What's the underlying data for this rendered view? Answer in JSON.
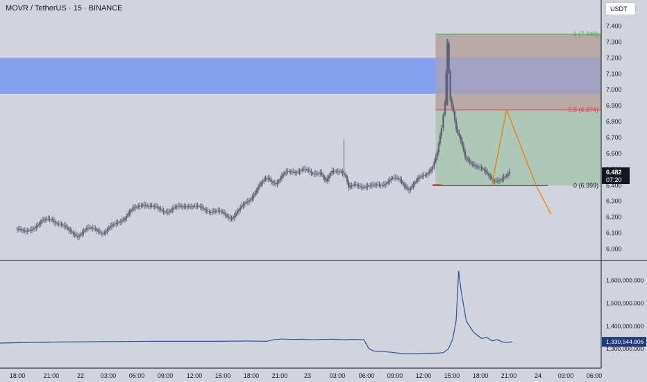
{
  "header": {
    "symbol_title": "MOVR / TetherUS · 15 · BINANCE",
    "currency": "USDT"
  },
  "colors": {
    "background": "#d1d4dc",
    "candle": "#5d6275",
    "supply_zone": "#7896f0",
    "fib_upper_zone": "#b39c9b",
    "fib_lower_zone": "#a8c5b1",
    "fib_top_line": "#4caf50",
    "fib_mid_line": "#f23645",
    "projection_line": "#f57c00",
    "volume_line": "#2a4fa0",
    "price_label_bg": "#131722",
    "volume_label_bg": "#1f3a7a"
  },
  "price_scale": {
    "ticks": [
      "7.400",
      "7.300",
      "7.200",
      "7.100",
      "7.000",
      "6.900",
      "6.800",
      "6.700",
      "6.600",
      "6.500",
      "6.400",
      "6.300",
      "6.200",
      "6.100",
      "6.000"
    ],
    "current_price": "6.482",
    "countdown": "07:20"
  },
  "fib_levels": {
    "top_label": "1 (7.349)",
    "mid_label": "0.5 (6.874)",
    "bottom_label": "0 (6.399)"
  },
  "volume_scale": {
    "ticks": [
      "1,600,000.000",
      "1,500,000.000",
      "1,400,000.000",
      "1,300,000.000"
    ],
    "current_value": "1,330,544.806"
  },
  "time_axis": {
    "ticks": [
      "18:00",
      "21:00",
      "22",
      "03:00",
      "06:00",
      "09:00",
      "12:00",
      "15:00",
      "18:00",
      "21:00",
      "23",
      "03:00",
      "06:00",
      "09:00",
      "12:00",
      "15:00",
      "18:00",
      "21:00",
      "24",
      "03:00",
      "06:00"
    ]
  },
  "chart_data": [
    {
      "type": "candlestick",
      "title": "MOVR / TetherUS · 15 · BINANCE",
      "x_unit": "hour",
      "ylim": [
        5.95,
        7.45
      ],
      "yticks": [
        6.0,
        6.1,
        6.2,
        6.3,
        6.4,
        6.5,
        6.6,
        6.7,
        6.8,
        6.9,
        7.0,
        7.1,
        7.2,
        7.3,
        7.4
      ],
      "close_path": [
        [
          16.0,
          6.13
        ],
        [
          17.5,
          6.1
        ],
        [
          19.0,
          6.14
        ],
        [
          20.5,
          6.17
        ],
        [
          22.0,
          6.19
        ],
        [
          23.5,
          6.16
        ],
        [
          25.0,
          6.11
        ],
        [
          26.5,
          6.09
        ],
        [
          28.0,
          6.12
        ],
        [
          29.5,
          6.13
        ],
        [
          31.0,
          6.1
        ],
        [
          32.0,
          6.13
        ],
        [
          33.5,
          6.18
        ],
        [
          34.5,
          6.2
        ],
        [
          36.0,
          6.25
        ],
        [
          37.5,
          6.29
        ],
        [
          39.0,
          6.26
        ],
        [
          40.5,
          6.25
        ],
        [
          42.0,
          6.24
        ],
        [
          43.5,
          6.26
        ],
        [
          45.0,
          6.28
        ],
        [
          46.5,
          6.26
        ],
        [
          48.0,
          6.25
        ],
        [
          49.5,
          6.24
        ],
        [
          51.0,
          6.22
        ],
        [
          52.5,
          6.2
        ],
        [
          54.0,
          6.25
        ],
        [
          55.5,
          6.31
        ],
        [
          57.0,
          6.39
        ],
        [
          58.5,
          6.44
        ],
        [
          60.0,
          6.42
        ],
        [
          61.5,
          6.47
        ],
        [
          63.0,
          6.49
        ],
        [
          64.5,
          6.5
        ],
        [
          66.0,
          6.47
        ],
        [
          67.5,
          6.49
        ],
        [
          68.5,
          6.42
        ],
        [
          69.5,
          6.48
        ],
        [
          71.0,
          6.5
        ],
        [
          71.8,
          6.46
        ],
        [
          72.3,
          6.38
        ],
        [
          73.5,
          6.4
        ],
        [
          75.0,
          6.4
        ],
        [
          76.5,
          6.39
        ],
        [
          78.0,
          6.41
        ],
        [
          79.5,
          6.44
        ],
        [
          81.0,
          6.43
        ],
        [
          82.5,
          6.38
        ],
        [
          83.5,
          6.41
        ],
        [
          84.5,
          6.45
        ],
        [
          85.5,
          6.48
        ],
        [
          86.5,
          6.52
        ],
        [
          87.3,
          6.6
        ],
        [
          88.0,
          6.75
        ],
        [
          88.6,
          6.92
        ],
        [
          89.0,
          7.3
        ],
        [
          89.5,
          6.95
        ],
        [
          90.0,
          6.87
        ],
        [
          90.5,
          6.75
        ],
        [
          91.0,
          6.7
        ],
        [
          91.5,
          6.64
        ],
        [
          92.0,
          6.57
        ],
        [
          93.0,
          6.55
        ],
        [
          94.0,
          6.52
        ],
        [
          95.0,
          6.49
        ],
        [
          96.0,
          6.46
        ],
        [
          97.0,
          6.44
        ],
        [
          98.0,
          6.43
        ],
        [
          99.0,
          6.45
        ],
        [
          99.5,
          6.48
        ]
      ],
      "candle_high": 7.32,
      "candle_low": 6.05
    },
    {
      "type": "annotation",
      "supply_zone": {
        "y_range": [
          6.975,
          7.2
        ]
      },
      "fib_retracement": {
        "x_range": [
          87,
          100
        ],
        "levels": [
          7.349,
          6.874,
          6.399
        ],
        "upper_zone": [
          6.874,
          7.349
        ],
        "lower_zone": [
          6.399,
          6.874
        ]
      },
      "projection": {
        "points": [
          [
            96.5,
            6.399
          ],
          [
            99.0,
            6.874
          ],
          [
            104.0,
            6.399
          ],
          [
            106.5,
            6.22
          ]
        ]
      },
      "key_level_line": {
        "y": 6.399,
        "x_range": [
          86.5,
          106.0
        ]
      }
    },
    {
      "type": "line",
      "name": "Volume",
      "ylim": [
        1240000,
        1680000
      ],
      "yticks": [
        1300000,
        1400000,
        1500000,
        1600000
      ],
      "x": [
        0,
        6,
        12,
        18,
        24,
        30,
        36,
        42,
        48,
        52,
        53.5,
        55,
        57,
        59,
        61,
        63,
        65,
        67,
        69,
        71,
        72,
        73,
        75,
        77,
        79,
        81,
        83,
        85,
        86.5,
        87.5,
        88.3,
        89,
        89.5,
        90.0,
        91,
        92.5,
        94,
        95,
        96,
        97,
        98,
        99,
        100.0
      ],
      "y": [
        1325000,
        1328000,
        1330000,
        1331000,
        1332000,
        1333000,
        1333000,
        1333000,
        1334000,
        1333000,
        1340000,
        1343000,
        1341000,
        1342000,
        1340000,
        1341000,
        1342000,
        1340000,
        1341000,
        1340000,
        1300000,
        1290000,
        1288000,
        1283000,
        1278000,
        1278000,
        1279000,
        1281000,
        1283000,
        1300000,
        1340000,
        1420000,
        1640000,
        1550000,
        1420000,
        1370000,
        1345000,
        1350000,
        1335000,
        1340000,
        1330000,
        1328000,
        1330544
      ]
    }
  ]
}
